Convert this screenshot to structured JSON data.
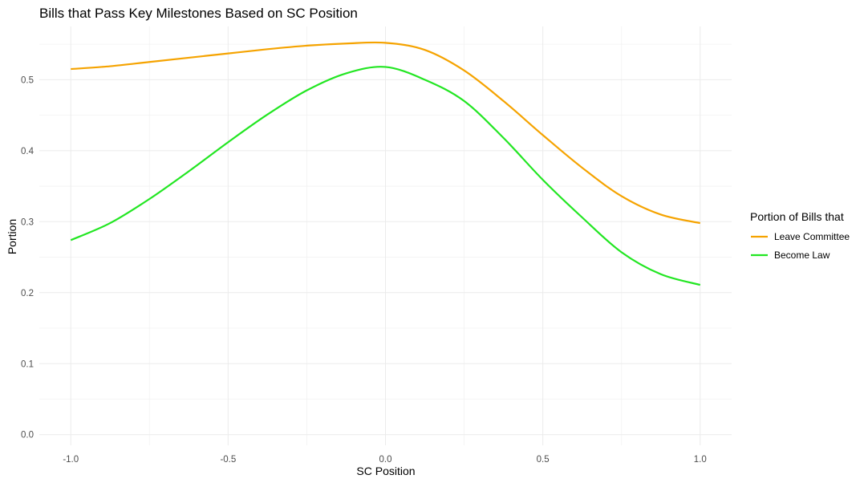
{
  "chart_data": {
    "type": "line",
    "title": "Bills that Pass Key Milestones Based on SC Position",
    "xlabel": "SC Position",
    "ylabel": "Portion",
    "xlim": [
      -1.1,
      1.1
    ],
    "ylim": [
      -0.015,
      0.575
    ],
    "x_ticks": [
      -1.0,
      -0.5,
      0.0,
      0.5,
      1.0
    ],
    "x_tick_labels": [
      "-1.0",
      "-0.5",
      "0.0",
      "0.5",
      "1.0"
    ],
    "y_ticks": [
      0.0,
      0.1,
      0.2,
      0.3,
      0.4,
      0.5
    ],
    "y_tick_labels": [
      "0.0",
      "0.1",
      "0.2",
      "0.3",
      "0.4",
      "0.5"
    ],
    "grid": true,
    "legend": {
      "title": "Portion of Bills that",
      "placement": "right"
    },
    "series": [
      {
        "name": "Leave Committee",
        "color": "#f5a300",
        "x": [
          -1.0,
          -0.875,
          -0.75,
          -0.625,
          -0.5,
          -0.375,
          -0.25,
          -0.125,
          0.0,
          0.125,
          0.25,
          0.375,
          0.5,
          0.625,
          0.75,
          0.875,
          1.0
        ],
        "y": [
          0.515,
          0.519,
          0.525,
          0.531,
          0.537,
          0.543,
          0.548,
          0.551,
          0.552,
          0.542,
          0.513,
          0.47,
          0.422,
          0.376,
          0.336,
          0.31,
          0.298
        ]
      },
      {
        "name": "Become Law",
        "color": "#22e622",
        "x": [
          -1.0,
          -0.875,
          -0.75,
          -0.625,
          -0.5,
          -0.375,
          -0.25,
          -0.125,
          0.0,
          0.125,
          0.25,
          0.375,
          0.5,
          0.625,
          0.75,
          0.875,
          1.0
        ],
        "y": [
          0.274,
          0.298,
          0.332,
          0.371,
          0.412,
          0.451,
          0.485,
          0.509,
          0.518,
          0.5,
          0.47,
          0.418,
          0.359,
          0.306,
          0.257,
          0.226,
          0.211
        ]
      }
    ]
  }
}
